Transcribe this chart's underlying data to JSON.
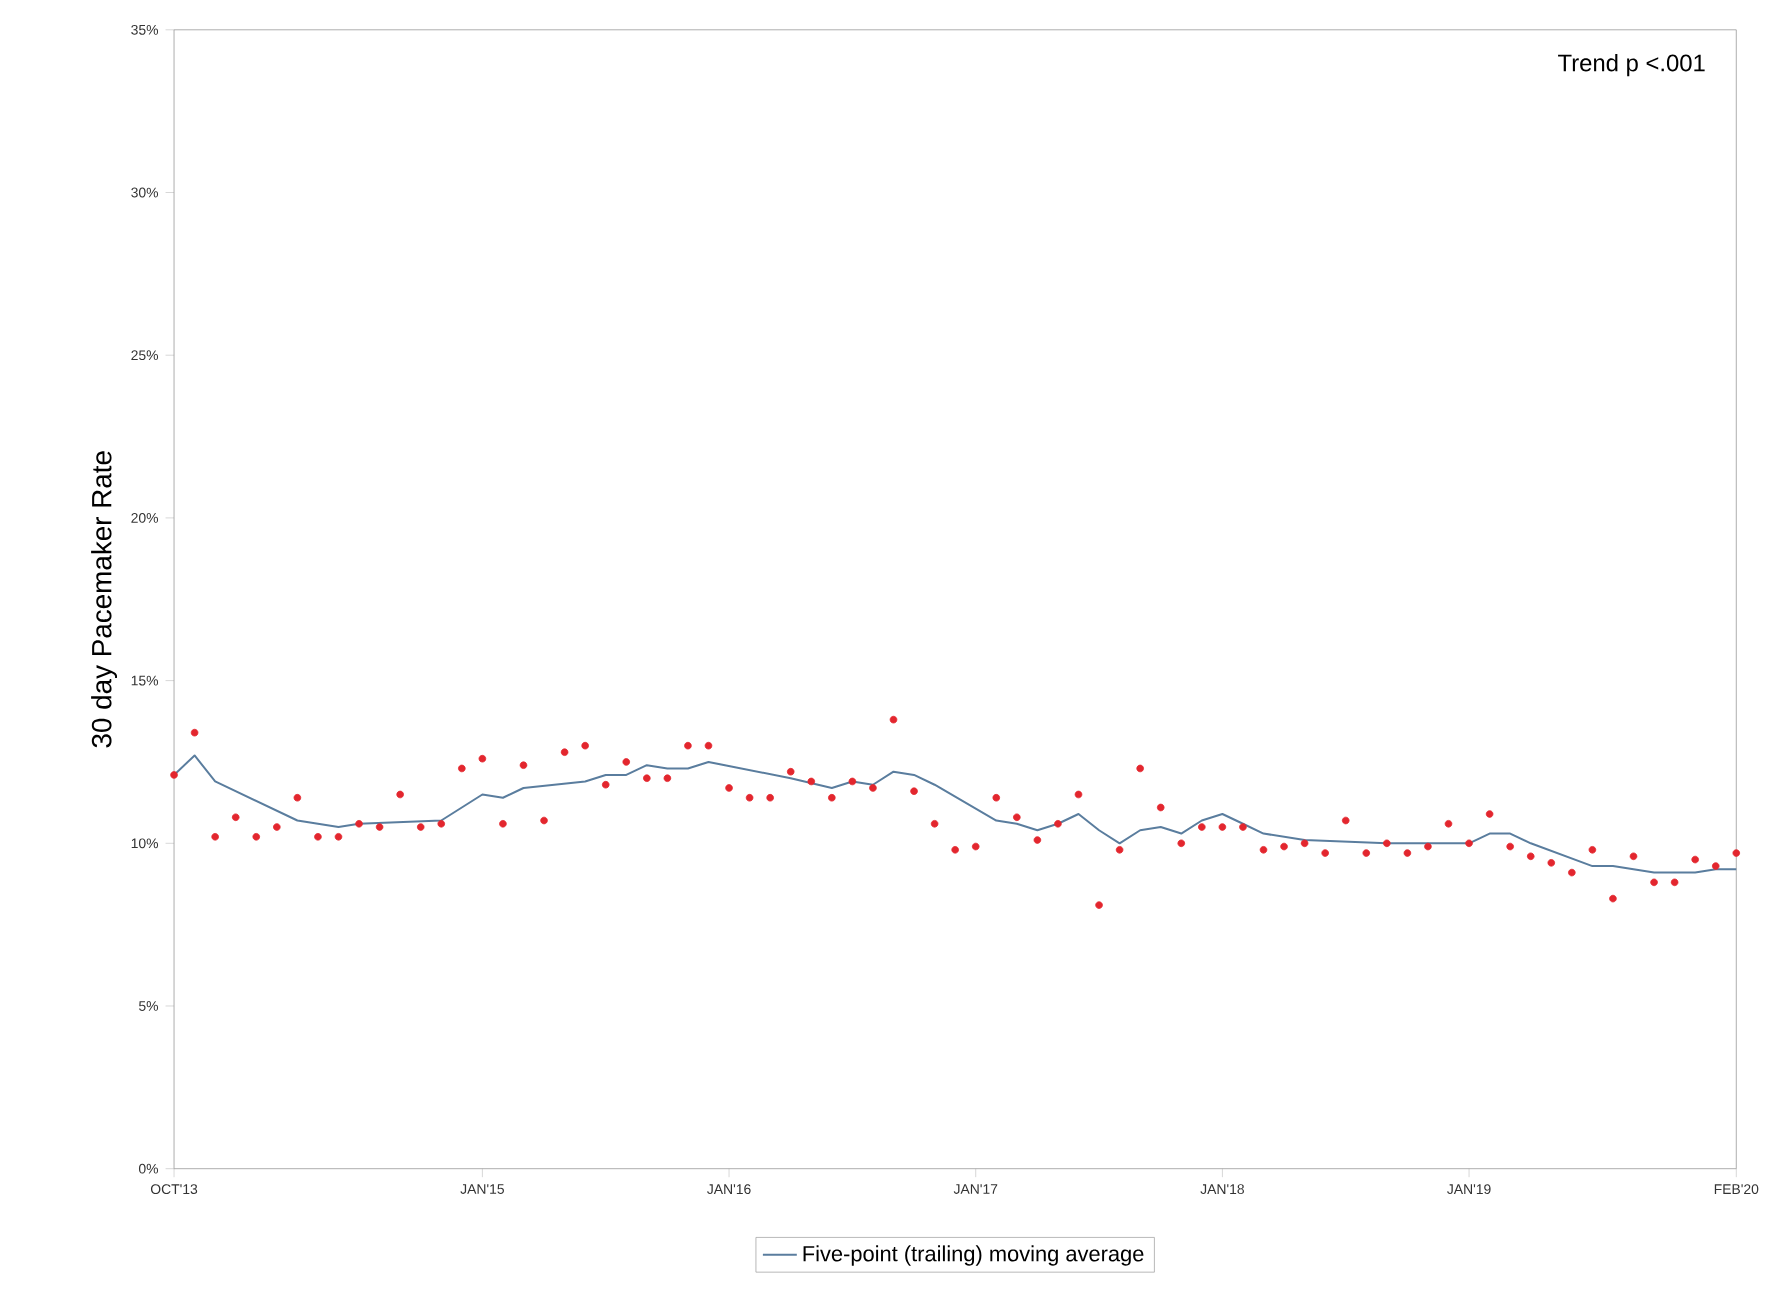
{
  "chart_data": {
    "type": "scatter",
    "ylabel": "30 day Pacemaker Rate",
    "annotations": [
      "Trend p <.001"
    ],
    "xlim": [
      "2013-10",
      "2020-02"
    ],
    "xticks": [
      {
        "value": "2013-10",
        "label": "OCT'13"
      },
      {
        "value": "2015-01",
        "label": "JAN'15"
      },
      {
        "value": "2016-01",
        "label": "JAN'16"
      },
      {
        "value": "2017-01",
        "label": "JAN'17"
      },
      {
        "value": "2018-01",
        "label": "JAN'18"
      },
      {
        "value": "2019-01",
        "label": "JAN'19"
      },
      {
        "value": "2020-02",
        "label": "FEB'20"
      }
    ],
    "ylim": [
      0,
      35
    ],
    "yticks": [
      {
        "value": 0,
        "label": "0%"
      },
      {
        "value": 5,
        "label": "5%"
      },
      {
        "value": 10,
        "label": "10%"
      },
      {
        "value": 15,
        "label": "15%"
      },
      {
        "value": 20,
        "label": "20%"
      },
      {
        "value": 25,
        "label": "25%"
      },
      {
        "value": 30,
        "label": "30%"
      },
      {
        "value": 35,
        "label": "35%"
      }
    ],
    "grid": false,
    "legend": "bottom",
    "series": [
      {
        "color": "#e3262e",
        "marker": "circle",
        "x": [
          "2013-10",
          "2013-11",
          "2013-12",
          "2014-01",
          "2014-02",
          "2014-03",
          "2014-04",
          "2014-05",
          "2014-06",
          "2014-07",
          "2014-08",
          "2014-09",
          "2014-10",
          "2014-11",
          "2014-12",
          "2015-01",
          "2015-02",
          "2015-03",
          "2015-04",
          "2015-05",
          "2015-06",
          "2015-07",
          "2015-08",
          "2015-09",
          "2015-10",
          "2015-11",
          "2015-12",
          "2016-01",
          "2016-02",
          "2016-03",
          "2016-04",
          "2016-05",
          "2016-06",
          "2016-07",
          "2016-08",
          "2016-09",
          "2016-10",
          "2016-11",
          "2016-12",
          "2017-01",
          "2017-02",
          "2017-03",
          "2017-04",
          "2017-05",
          "2017-06",
          "2017-07",
          "2017-08",
          "2017-09",
          "2017-10",
          "2017-11",
          "2017-12",
          "2018-01",
          "2018-02",
          "2018-03",
          "2018-04",
          "2018-05",
          "2018-06",
          "2018-07",
          "2018-08",
          "2018-09",
          "2018-10",
          "2018-11",
          "2018-12",
          "2019-01",
          "2019-02",
          "2019-03",
          "2019-04",
          "2019-05",
          "2019-06",
          "2019-07",
          "2019-08",
          "2019-09",
          "2019-10",
          "2019-11",
          "2019-12",
          "2020-01",
          "2020-02"
        ],
        "values": [
          12.1,
          13.4,
          10.2,
          10.8,
          10.2,
          10.5,
          11.4,
          10.2,
          10.2,
          10.6,
          10.5,
          11.5,
          10.5,
          10.6,
          12.3,
          12.6,
          10.6,
          12.4,
          10.7,
          12.8,
          13.0,
          11.8,
          12.5,
          12.0,
          12.0,
          13.0,
          13.0,
          11.7,
          11.4,
          11.4,
          12.2,
          11.9,
          11.4,
          11.9,
          11.7,
          13.8,
          11.6,
          10.6,
          9.8,
          9.9,
          11.4,
          10.8,
          10.1,
          10.6,
          11.5,
          8.1,
          9.8,
          12.3,
          11.1,
          10.0,
          10.5,
          10.5,
          10.5,
          9.8,
          9.9,
          10.0,
          9.7,
          10.7,
          9.7,
          10.0,
          9.7,
          9.9,
          10.6,
          10.0,
          10.9,
          9.9,
          9.6,
          9.4,
          9.1,
          9.8,
          8.3,
          9.6,
          8.8,
          8.8,
          9.5,
          9.3,
          9.7
        ]
      },
      {
        "type": "line",
        "name": "Five-point (trailing) moving average",
        "color": "#5a7d9e",
        "marker": "none",
        "x": [
          "2013-10",
          "2013-11",
          "2013-12",
          "2014-04",
          "2014-06",
          "2014-07",
          "2014-11",
          "2015-01",
          "2015-02",
          "2015-03",
          "2015-06",
          "2015-07",
          "2015-08",
          "2015-09",
          "2015-10",
          "2015-11",
          "2015-12",
          "2016-04",
          "2016-06",
          "2016-07",
          "2016-08",
          "2016-09",
          "2016-10",
          "2016-11",
          "2017-02",
          "2017-03",
          "2017-04",
          "2017-05",
          "2017-06",
          "2017-07",
          "2017-08",
          "2017-09",
          "2017-10",
          "2017-11",
          "2017-12",
          "2018-01",
          "2018-02",
          "2018-03",
          "2018-05",
          "2018-09",
          "2019-01",
          "2019-02",
          "2019-03",
          "2019-04",
          "2019-07",
          "2019-08",
          "2019-10",
          "2019-12",
          "2020-01",
          "2020-02"
        ],
        "values": [
          12.1,
          12.7,
          11.9,
          10.7,
          10.5,
          10.6,
          10.7,
          11.5,
          11.4,
          11.7,
          11.9,
          12.1,
          12.1,
          12.4,
          12.3,
          12.3,
          12.5,
          12.0,
          11.7,
          11.9,
          11.8,
          12.2,
          12.1,
          11.8,
          10.7,
          10.6,
          10.4,
          10.6,
          10.9,
          10.4,
          10.0,
          10.4,
          10.5,
          10.3,
          10.7,
          10.9,
          10.6,
          10.3,
          10.1,
          10.0,
          10.0,
          10.3,
          10.3,
          10.0,
          9.3,
          9.3,
          9.1,
          9.1,
          9.2,
          9.2
        ]
      }
    ]
  }
}
